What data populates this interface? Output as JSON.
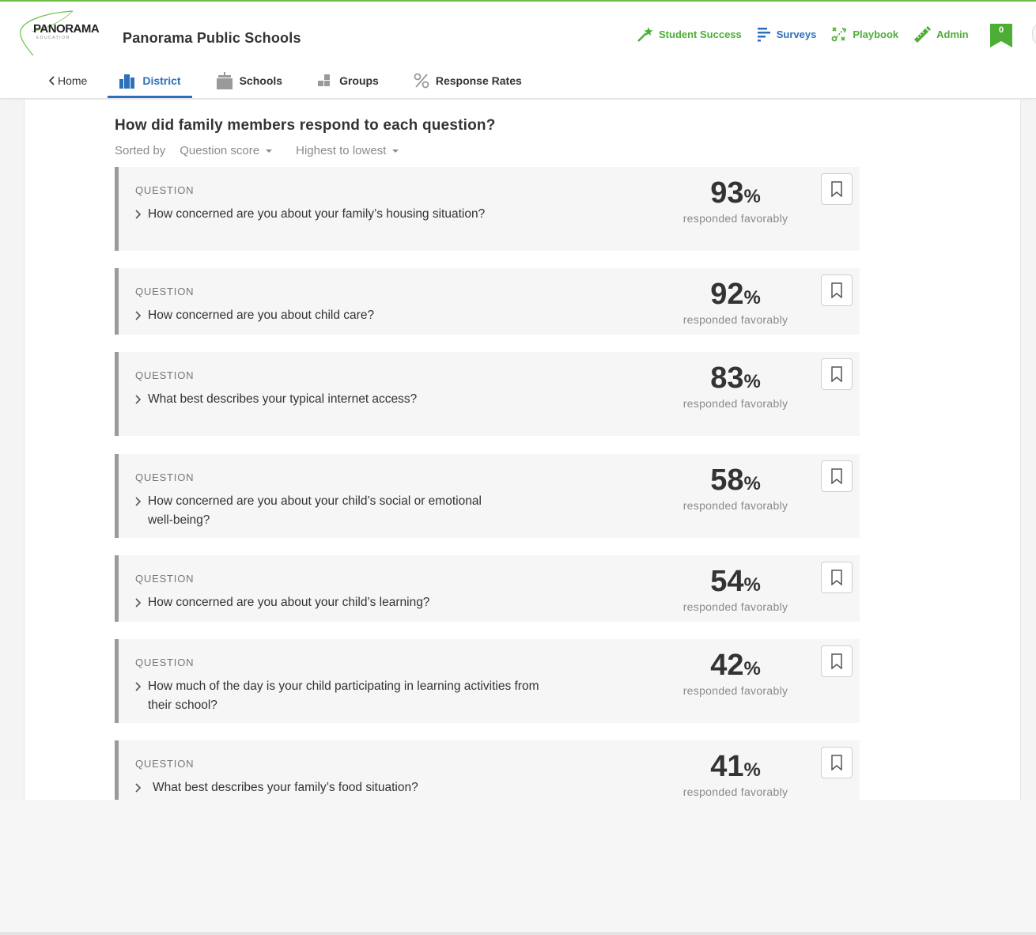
{
  "brand": {
    "logo_text": "PANORAMA",
    "logo_sub": "EDUCATION",
    "org_name": "Panorama Public Schools",
    "accent_green": "#4cae35",
    "accent_blue": "#2d6fbc"
  },
  "top_nav": [
    {
      "label": "Student Success",
      "icon": "sparkle-icon"
    },
    {
      "label": "Surveys",
      "icon": "bars-icon"
    },
    {
      "label": "Playbook",
      "icon": "playbook-icon"
    },
    {
      "label": "Admin",
      "icon": "pencil-ruler-icon"
    }
  ],
  "bookmark_count": "0",
  "sub_nav": {
    "home": "Home",
    "tabs": [
      {
        "label": "District",
        "icon": "district-icon",
        "active": true
      },
      {
        "label": "Schools",
        "icon": "school-icon",
        "active": false
      },
      {
        "label": "Groups",
        "icon": "groups-icon",
        "active": false
      },
      {
        "label": "Response Rates",
        "icon": "percent-icon",
        "active": false
      }
    ]
  },
  "main": {
    "title": "How did family members respond to each question?",
    "sort": {
      "label": "Sorted by",
      "field": "Question score",
      "order": "Highest to lowest"
    },
    "question_label": "QUESTION",
    "score_caption": "responded favorably",
    "questions": [
      {
        "text": "How concerned are you about your family’s housing situation?",
        "score": "93"
      },
      {
        "text": "How concerned are you about child care?",
        "score": "92"
      },
      {
        "text": "What best describes your typical internet access?",
        "score": "83"
      },
      {
        "text": "How concerned are you about your child’s social or emotional well-being?",
        "score": "58"
      },
      {
        "text": "How concerned are you about your child’s learning?",
        "score": "54"
      },
      {
        "text": "How much of the day is your child participating in learning activities from their school?",
        "score": "42"
      },
      {
        "text": "What best describes your family’s food situation?",
        "score": "41"
      }
    ]
  }
}
